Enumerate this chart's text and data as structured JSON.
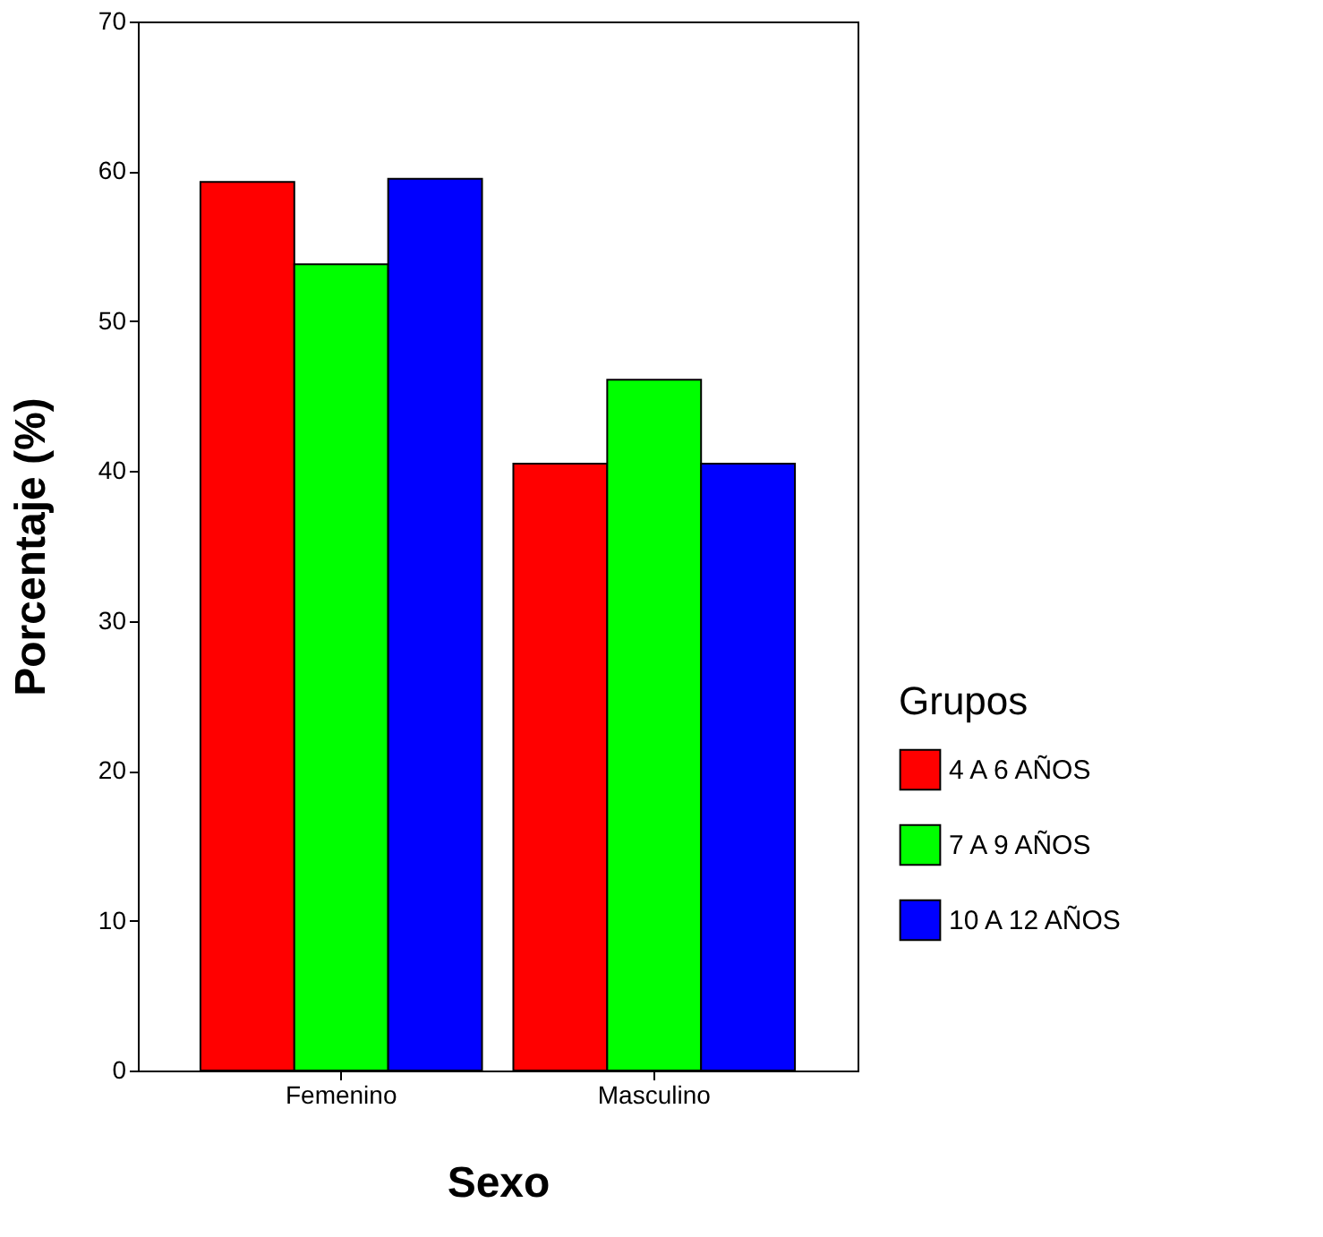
{
  "chart_data": {
    "type": "bar",
    "xlabel": "Sexo",
    "ylabel": "Porcentaje (%)",
    "legend_title": "Grupos",
    "categories": [
      "Femenino",
      "Masculino"
    ],
    "series": [
      {
        "name": "4 A 6 AÑOS",
        "color": "#ff0000",
        "values": [
          59.3,
          40.5
        ]
      },
      {
        "name": "7 A 9 AÑOS",
        "color": "#00ff00",
        "values": [
          53.8,
          46.1
        ]
      },
      {
        "name": "10 A 12 AÑOS",
        "color": "#0000ff",
        "values": [
          59.5,
          40.5
        ]
      }
    ],
    "ylim": [
      0,
      70
    ],
    "yticks": [
      0,
      10,
      20,
      30,
      40,
      50,
      60,
      70
    ],
    "grid": false,
    "legend": "right"
  }
}
